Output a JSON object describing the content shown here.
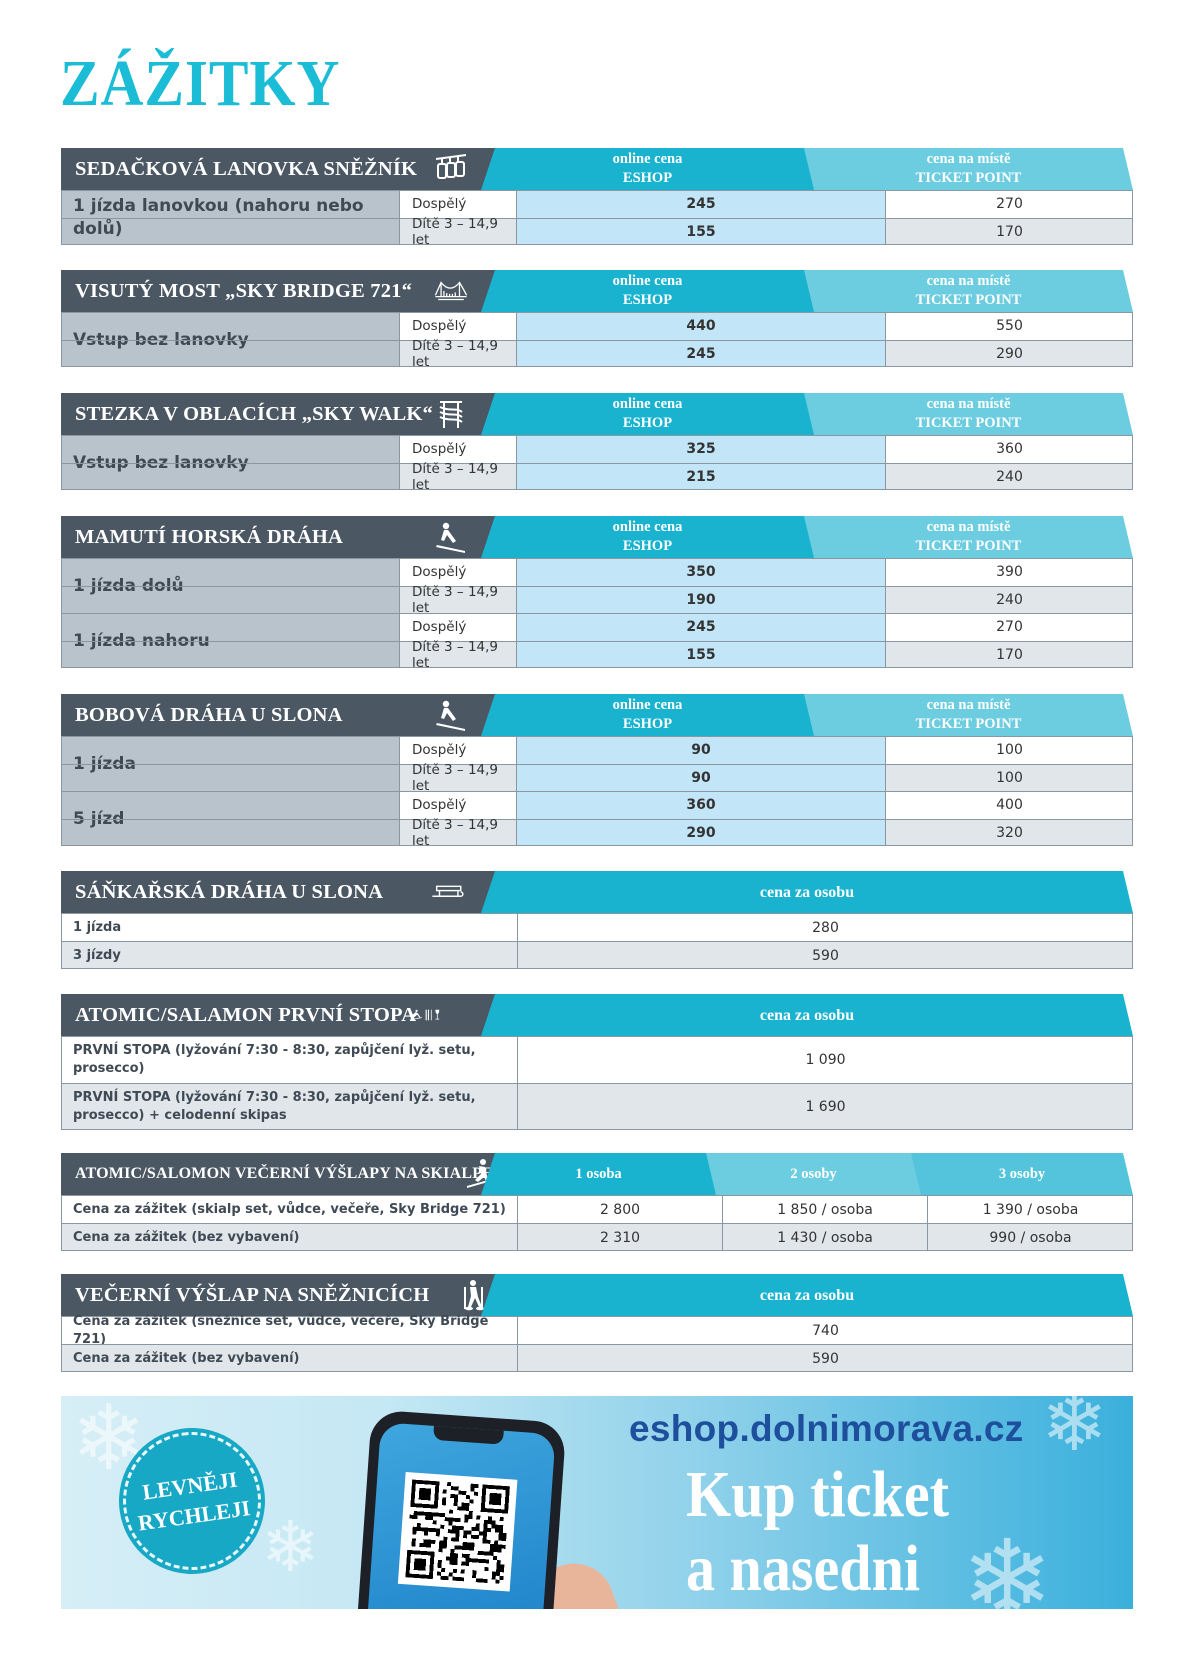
{
  "page_title": "ZÁŽITKY",
  "online_label_1": "online cena",
  "online_label_2": "ESHOP",
  "place_label_1": "cena na místě",
  "place_label_2": "TICKET POINT",
  "per_person_label": "cena za osobu",
  "adult": "Dospělý",
  "child": "Dítě 3 – 14,9 let",
  "sections": [
    {
      "title": "SEDAČKOVÁ LANOVKA SNĚŽNÍK",
      "icon": "chairlift-icon",
      "groups": [
        {
          "label": "1 jízda lanovkou (nahoru nebo dolů)",
          "rows": [
            {
              "eshop": "245",
              "place": "270"
            },
            {
              "eshop": "155",
              "place": "170"
            }
          ]
        }
      ]
    },
    {
      "title": "VISUTÝ MOST „SKY BRIDGE 721“",
      "icon": "bridge-icon",
      "groups": [
        {
          "label": "Vstup bez lanovky",
          "rows": [
            {
              "eshop": "440",
              "place": "550"
            },
            {
              "eshop": "245",
              "place": "290"
            }
          ]
        }
      ]
    },
    {
      "title": "STEZKA V OBLACÍCH „SKY WALK“",
      "icon": "tower-icon",
      "groups": [
        {
          "label": "Vstup bez lanovky",
          "rows": [
            {
              "eshop": "325",
              "place": "360"
            },
            {
              "eshop": "215",
              "place": "240"
            }
          ]
        }
      ]
    },
    {
      "title": "MAMUTÍ HORSKÁ DRÁHA",
      "icon": "sled-rider-icon",
      "groups": [
        {
          "label": "1 jízda dolů",
          "rows": [
            {
              "eshop": "350",
              "place": "390"
            },
            {
              "eshop": "190",
              "place": "240"
            }
          ]
        },
        {
          "label": "1 jízda nahoru",
          "rows": [
            {
              "eshop": "245",
              "place": "270"
            },
            {
              "eshop": "155",
              "place": "170"
            }
          ]
        }
      ]
    },
    {
      "title": "BOBOVÁ DRÁHA U SLONA",
      "icon": "sled-rider-icon",
      "groups": [
        {
          "label": "1 jízda",
          "rows": [
            {
              "eshop": "90",
              "place": "100"
            },
            {
              "eshop": "90",
              "place": "100"
            }
          ]
        },
        {
          "label": "5 jízd",
          "rows": [
            {
              "eshop": "360",
              "place": "400"
            },
            {
              "eshop": "290",
              "place": "320"
            }
          ]
        }
      ]
    }
  ],
  "sledge": {
    "title": "SÁŇKAŘSKÁ DRÁHA U SLONA",
    "icon": "sledge-icon",
    "rows": [
      {
        "label": "1 jízda",
        "price": "280"
      },
      {
        "label": "3 jízdy",
        "price": "590"
      }
    ]
  },
  "first_track": {
    "title": "ATOMIC/SALAMON PRVNÍ STOPA",
    "icon": "skier-icon",
    "rows": [
      {
        "label": "PRVNÍ STOPA (lyžování 7:30 - 8:30, zapůjčení lyž. setu, prosecco)",
        "price": "1 090"
      },
      {
        "label": "PRVNÍ STOPA (lyžování 7:30 - 8:30, zapůjčení lyž. setu, prosecco) + celodenní skipas",
        "price": "1 690"
      }
    ]
  },
  "evening_ski": {
    "title": "ATOMIC/SALOMON VEČERNÍ VÝŠLAPY NA SKIALPECH",
    "icon": "skitour-icon",
    "cols": [
      "1 osoba",
      "2 osoby",
      "3 osoby"
    ],
    "rows": [
      {
        "label": "Cena za zážitek (skialp set, vůdce, večeře, Sky Bridge 721)",
        "v": [
          "2 800",
          "1 850 / osoba",
          "1 390 / osoba"
        ]
      },
      {
        "label": "Cena za zážitek (bez vybavení)",
        "v": [
          "2 310",
          "1 430 / osoba",
          "990 / osoba"
        ]
      }
    ]
  },
  "snowshoe": {
    "title": "VEČERNÍ VÝŠLAP NA SNĚŽNICÍCH",
    "icon": "snowshoe-icon",
    "rows": [
      {
        "label": "Cena za zážitek (sněžnice set, vůdce, večeře, Sky Bridge 721)",
        "price": "740"
      },
      {
        "label": "Cena za zážitek (bez vybavení)",
        "price": "590"
      }
    ]
  },
  "banner": {
    "badge_1": "LEVNĚJI",
    "badge_2": "RYCHLEJI",
    "url": "eshop.dolnimorava.cz",
    "slogan_1": "Kup ticket",
    "slogan_2": "a nasedni"
  },
  "colors": {
    "accent": "#19b3cf",
    "dark": "#4b5864",
    "eshop_bg": "#c2e6f7",
    "title": "#1bbcd6"
  }
}
